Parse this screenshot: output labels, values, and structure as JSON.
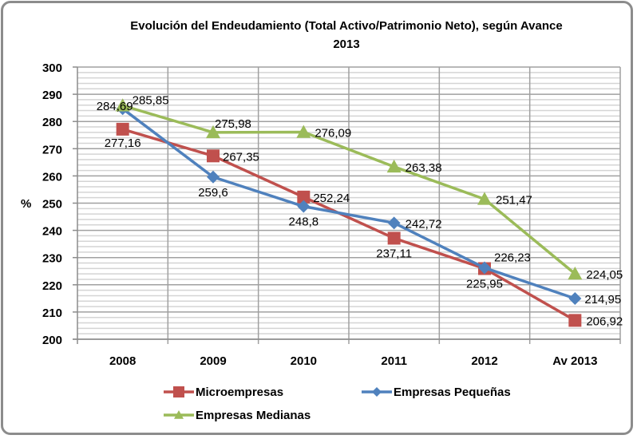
{
  "chart_data": {
    "type": "line",
    "title": "Evolución del Endeudamiento (Total Activo/Patrimonio Neto), según Avance",
    "title_line2": "2013",
    "xlabel": "",
    "ylabel": "%",
    "ylim": [
      200,
      300
    ],
    "y_major_step": 10,
    "y_minor_step": 2,
    "grid": true,
    "legend_position": "bottom",
    "categories": [
      "2008",
      "2009",
      "2010",
      "2011",
      "2012",
      "Av 2013"
    ],
    "series": [
      {
        "name": "Microempresas",
        "color": "#c0504d",
        "marker": "square",
        "values": [
          277.16,
          267.35,
          252.24,
          237.11,
          225.95,
          206.92
        ],
        "labels": [
          "277,16",
          "267,35",
          "252,24",
          "237,11",
          "225,95",
          "206,92"
        ]
      },
      {
        "name": "Empresas Pequeñas",
        "color": "#4f81bd",
        "marker": "diamond",
        "values": [
          284.69,
          259.6,
          248.8,
          242.72,
          226.23,
          214.95
        ],
        "labels": [
          "284,69",
          "259,6",
          "248,8",
          "242,72",
          "226,23",
          "214,95"
        ]
      },
      {
        "name": "Empresas Medianas",
        "color": "#9bbb59",
        "marker": "triangle",
        "values": [
          285.85,
          275.98,
          276.09,
          263.38,
          251.47,
          224.05
        ],
        "labels": [
          "285,85",
          "275,98",
          "276,09",
          "263,38",
          "251,47",
          "224,05"
        ]
      }
    ]
  }
}
